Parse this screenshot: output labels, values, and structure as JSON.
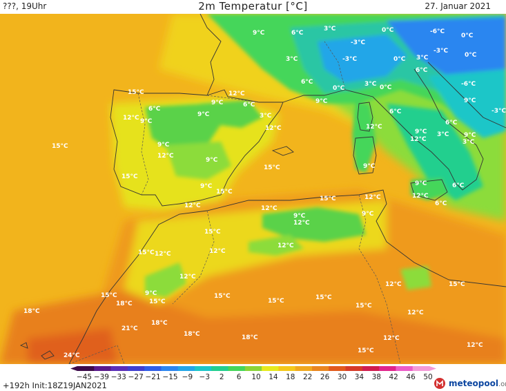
{
  "header": {
    "left": "???, 19Uhr",
    "title": "2m Temperatur [°C]",
    "date": "27. Januar 2021"
  },
  "footer": {
    "run": "+192h  Init:18Z19JAN2021",
    "logo_text": "meteopool",
    "logo_suffix": ".org"
  },
  "colorbar": {
    "ticks": [
      "-45",
      "-39",
      "-33",
      "-27",
      "-21",
      "-15",
      "-9",
      "-3",
      "2",
      "6",
      "10",
      "14",
      "18",
      "22",
      "26",
      "30",
      "34",
      "38",
      "42",
      "46",
      "50"
    ],
    "colors": [
      "#3d0a4a",
      "#5a1a8c",
      "#5b2fb8",
      "#3f3fd0",
      "#2f5ee8",
      "#2b86f0",
      "#22a6e8",
      "#1cc6c8",
      "#22cf8e",
      "#45d65a",
      "#8ad438",
      "#e6ea1e",
      "#f4c81a",
      "#f0a81e",
      "#ea861f",
      "#e25a1c",
      "#d63a28",
      "#d01c4e",
      "#e0248c",
      "#ec5cc8",
      "#f49ad8"
    ]
  },
  "map_colors": {
    "sea": "#f2b41c",
    "land_warm": "#ef9a1f",
    "land_hot": "#e8701c",
    "mild": "#f0d21a",
    "cool": "#d7e41c",
    "green": "#5ad24a",
    "green_light": "#8cdc3a",
    "cyan": "#2ac6a4",
    "blue": "#2b86f0",
    "blue_light": "#22a6e8"
  },
  "labels": [
    {
      "id": "lbl-9-alps-west",
      "text": "9°C"
    },
    {
      "id": "lbl-6-alps-1",
      "text": "6°C"
    },
    {
      "id": "lbl-3-alps-1",
      "text": "3°C"
    },
    {
      "id": "lbl-0-alps-1",
      "text": "0°C"
    },
    {
      "id": "lbl-m6-alps",
      "text": "-6°C"
    },
    {
      "id": "lbl-0-east",
      "text": "0°C"
    },
    {
      "id": "lbl-m3-alps",
      "text": "-3°C"
    },
    {
      "id": "lbl-m3-alps-2",
      "text": "-3°C"
    },
    {
      "id": "lbl-0-alps-2",
      "text": "0°C"
    },
    {
      "id": "lbl-3-alps-2",
      "text": "3°C"
    },
    {
      "id": "lbl-m3-balkan",
      "text": "-3°C"
    },
    {
      "id": "lbl-0-balkan",
      "text": "0°C"
    },
    {
      "id": "lbl-3-france",
      "text": "3°C"
    },
    {
      "id": "lbl-6-italy-n",
      "text": "6°C"
    },
    {
      "id": "lbl-6-balkan",
      "text": "6°C"
    },
    {
      "id": "lbl-m6-balkan",
      "text": "-6°C"
    },
    {
      "id": "lbl-0-po",
      "text": "0°C"
    },
    {
      "id": "lbl-3-po",
      "text": "3°C"
    },
    {
      "id": "lbl-0-po-2",
      "text": "0°C"
    },
    {
      "id": "lbl-9-france-s",
      "text": "9°C"
    },
    {
      "id": "lbl-9-balkan-2",
      "text": "9°C"
    },
    {
      "id": "lbl-m3-east",
      "text": "-3°C"
    },
    {
      "id": "lbl-15-galicia",
      "text": "15°C"
    },
    {
      "id": "lbl-12-pyr",
      "text": "12°C"
    },
    {
      "id": "lbl-9-pyr",
      "text": "9°C"
    },
    {
      "id": "lbl-6-pyr",
      "text": "6°C"
    },
    {
      "id": "lbl-6-iberia-nw",
      "text": "6°C"
    },
    {
      "id": "lbl-12-iberia-nw",
      "text": "12°C"
    },
    {
      "id": "lbl-9-iberia-nw",
      "text": "9°C"
    },
    {
      "id": "lbl-9-iberia-n",
      "text": "9°C"
    },
    {
      "id": "lbl-3-catalonia",
      "text": "3°C"
    },
    {
      "id": "lbl-12-catalonia",
      "text": "12°C"
    },
    {
      "id": "lbl-6-italy-c",
      "text": "6°C"
    },
    {
      "id": "lbl-12-corsica",
      "text": "12°C"
    },
    {
      "id": "lbl-9-italy-c",
      "text": "9°C"
    },
    {
      "id": "lbl-3-italy-s",
      "text": "3°C"
    },
    {
      "id": "lbl-6-italy-s",
      "text": "6°C"
    },
    {
      "id": "lbl-9-balkan-3",
      "text": "9°C"
    },
    {
      "id": "lbl-3-italy-s2",
      "text": "3°C"
    },
    {
      "id": "lbl-12-tyrrh",
      "text": "12°C"
    },
    {
      "id": "lbl-15-atlantic",
      "text": "15°C"
    },
    {
      "id": "lbl-9-iberia-c",
      "text": "9°C"
    },
    {
      "id": "lbl-12-iberia-c",
      "text": "12°C"
    },
    {
      "id": "lbl-9-iberia-c2",
      "text": "9°C"
    },
    {
      "id": "lbl-15-balearic",
      "text": "15°C"
    },
    {
      "id": "lbl-9-sardinia",
      "text": "9°C"
    },
    {
      "id": "lbl-15-portugal",
      "text": "15°C"
    },
    {
      "id": "lbl-9-iberia-s",
      "text": "9°C"
    },
    {
      "id": "lbl-15-iberia-se",
      "text": "15°C"
    },
    {
      "id": "lbl-12-andalusia",
      "text": "12°C"
    },
    {
      "id": "lbl-9-sicily",
      "text": "9°C"
    },
    {
      "id": "lbl-12-sicily",
      "text": "12°C"
    },
    {
      "id": "lbl-6-sicily",
      "text": "6°C"
    },
    {
      "id": "lbl-6-calabria",
      "text": "6°C"
    },
    {
      "id": "lbl-12-algeria-n",
      "text": "12°C"
    },
    {
      "id": "lbl-15-algeria-n",
      "text": "15°C"
    },
    {
      "id": "lbl-12-tunisia",
      "text": "12°C"
    },
    {
      "id": "lbl-9-algeria",
      "text": "9°C"
    },
    {
      "id": "lbl-12-algeria",
      "text": "12°C"
    },
    {
      "id": "lbl-9-tunisia",
      "text": "9°C"
    },
    {
      "id": "lbl-15-morocco-n",
      "text": "15°C"
    },
    {
      "id": "lbl-12-morocco-n",
      "text": "12°C"
    },
    {
      "id": "lbl-15-morocco",
      "text": "15°C"
    },
    {
      "id": "lbl-12-morocco",
      "text": "12°C"
    },
    {
      "id": "lbl-12-algeria-2",
      "text": "12°C"
    },
    {
      "id": "lbl-12-morocco-2",
      "text": "12°C"
    },
    {
      "id": "lbl-15-morocco-sw",
      "text": "15°C"
    },
    {
      "id": "lbl-9-atlas",
      "text": "9°C"
    },
    {
      "id": "lbl-18-morocco",
      "text": "18°C"
    },
    {
      "id": "lbl-15-atlas",
      "text": "15°C"
    },
    {
      "id": "lbl-15-algeria-c",
      "text": "15°C"
    },
    {
      "id": "lbl-15-algeria-c2",
      "text": "15°C"
    },
    {
      "id": "lbl-15-algeria-c3",
      "text": "15°C"
    },
    {
      "id": "lbl-15-libya",
      "text": "15°C"
    },
    {
      "id": "lbl-12-libya",
      "text": "12°C"
    },
    {
      "id": "lbl-15-libya-2",
      "text": "15°C"
    },
    {
      "id": "lbl-12-libya-2",
      "text": "12°C"
    },
    {
      "id": "lbl-18-atlantic",
      "text": "18°C"
    },
    {
      "id": "lbl-21-canaries",
      "text": "21°C"
    },
    {
      "id": "lbl-18-sahara-w",
      "text": "18°C"
    },
    {
      "id": "lbl-18-sahara",
      "text": "18°C"
    },
    {
      "id": "lbl-18-sahara-2",
      "text": "18°C"
    },
    {
      "id": "lbl-12-sahara",
      "text": "12°C"
    },
    {
      "id": "lbl-15-sahara",
      "text": "15°C"
    },
    {
      "id": "lbl-12-libya-s",
      "text": "12°C"
    },
    {
      "id": "lbl-24-sw",
      "text": "24°C"
    }
  ]
}
